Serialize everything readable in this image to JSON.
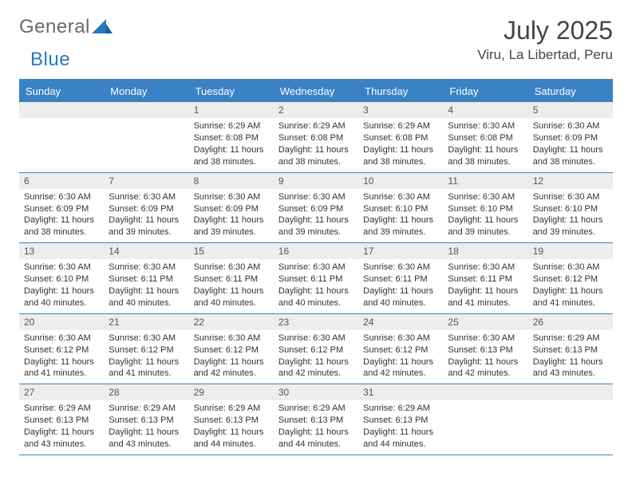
{
  "brand": {
    "part1": "General",
    "part2": "Blue"
  },
  "title": "July 2025",
  "location": "Viru, La Libertad, Peru",
  "colors": {
    "header_bg": "#3a82c4",
    "header_text": "#ffffff",
    "daynum_bg": "#ededed",
    "border": "#3a82c4",
    "text": "#333333",
    "brand_gray": "#6a6a6a",
    "brand_blue": "#2a7abf"
  },
  "weekdays": [
    "Sunday",
    "Monday",
    "Tuesday",
    "Wednesday",
    "Thursday",
    "Friday",
    "Saturday"
  ],
  "weeks": [
    [
      {
        "n": "",
        "sr": "",
        "ss": "",
        "dl": ""
      },
      {
        "n": "",
        "sr": "",
        "ss": "",
        "dl": ""
      },
      {
        "n": "1",
        "sr": "6:29 AM",
        "ss": "6:08 PM",
        "dl": "11 hours and 38 minutes."
      },
      {
        "n": "2",
        "sr": "6:29 AM",
        "ss": "6:08 PM",
        "dl": "11 hours and 38 minutes."
      },
      {
        "n": "3",
        "sr": "6:29 AM",
        "ss": "6:08 PM",
        "dl": "11 hours and 38 minutes."
      },
      {
        "n": "4",
        "sr": "6:30 AM",
        "ss": "6:08 PM",
        "dl": "11 hours and 38 minutes."
      },
      {
        "n": "5",
        "sr": "6:30 AM",
        "ss": "6:09 PM",
        "dl": "11 hours and 38 minutes."
      }
    ],
    [
      {
        "n": "6",
        "sr": "6:30 AM",
        "ss": "6:09 PM",
        "dl": "11 hours and 38 minutes."
      },
      {
        "n": "7",
        "sr": "6:30 AM",
        "ss": "6:09 PM",
        "dl": "11 hours and 39 minutes."
      },
      {
        "n": "8",
        "sr": "6:30 AM",
        "ss": "6:09 PM",
        "dl": "11 hours and 39 minutes."
      },
      {
        "n": "9",
        "sr": "6:30 AM",
        "ss": "6:09 PM",
        "dl": "11 hours and 39 minutes."
      },
      {
        "n": "10",
        "sr": "6:30 AM",
        "ss": "6:10 PM",
        "dl": "11 hours and 39 minutes."
      },
      {
        "n": "11",
        "sr": "6:30 AM",
        "ss": "6:10 PM",
        "dl": "11 hours and 39 minutes."
      },
      {
        "n": "12",
        "sr": "6:30 AM",
        "ss": "6:10 PM",
        "dl": "11 hours and 39 minutes."
      }
    ],
    [
      {
        "n": "13",
        "sr": "6:30 AM",
        "ss": "6:10 PM",
        "dl": "11 hours and 40 minutes."
      },
      {
        "n": "14",
        "sr": "6:30 AM",
        "ss": "6:11 PM",
        "dl": "11 hours and 40 minutes."
      },
      {
        "n": "15",
        "sr": "6:30 AM",
        "ss": "6:11 PM",
        "dl": "11 hours and 40 minutes."
      },
      {
        "n": "16",
        "sr": "6:30 AM",
        "ss": "6:11 PM",
        "dl": "11 hours and 40 minutes."
      },
      {
        "n": "17",
        "sr": "6:30 AM",
        "ss": "6:11 PM",
        "dl": "11 hours and 40 minutes."
      },
      {
        "n": "18",
        "sr": "6:30 AM",
        "ss": "6:11 PM",
        "dl": "11 hours and 41 minutes."
      },
      {
        "n": "19",
        "sr": "6:30 AM",
        "ss": "6:12 PM",
        "dl": "11 hours and 41 minutes."
      }
    ],
    [
      {
        "n": "20",
        "sr": "6:30 AM",
        "ss": "6:12 PM",
        "dl": "11 hours and 41 minutes."
      },
      {
        "n": "21",
        "sr": "6:30 AM",
        "ss": "6:12 PM",
        "dl": "11 hours and 41 minutes."
      },
      {
        "n": "22",
        "sr": "6:30 AM",
        "ss": "6:12 PM",
        "dl": "11 hours and 42 minutes."
      },
      {
        "n": "23",
        "sr": "6:30 AM",
        "ss": "6:12 PM",
        "dl": "11 hours and 42 minutes."
      },
      {
        "n": "24",
        "sr": "6:30 AM",
        "ss": "6:12 PM",
        "dl": "11 hours and 42 minutes."
      },
      {
        "n": "25",
        "sr": "6:30 AM",
        "ss": "6:13 PM",
        "dl": "11 hours and 42 minutes."
      },
      {
        "n": "26",
        "sr": "6:29 AM",
        "ss": "6:13 PM",
        "dl": "11 hours and 43 minutes."
      }
    ],
    [
      {
        "n": "27",
        "sr": "6:29 AM",
        "ss": "6:13 PM",
        "dl": "11 hours and 43 minutes."
      },
      {
        "n": "28",
        "sr": "6:29 AM",
        "ss": "6:13 PM",
        "dl": "11 hours and 43 minutes."
      },
      {
        "n": "29",
        "sr": "6:29 AM",
        "ss": "6:13 PM",
        "dl": "11 hours and 44 minutes."
      },
      {
        "n": "30",
        "sr": "6:29 AM",
        "ss": "6:13 PM",
        "dl": "11 hours and 44 minutes."
      },
      {
        "n": "31",
        "sr": "6:29 AM",
        "ss": "6:13 PM",
        "dl": "11 hours and 44 minutes."
      },
      {
        "n": "",
        "sr": "",
        "ss": "",
        "dl": ""
      },
      {
        "n": "",
        "sr": "",
        "ss": "",
        "dl": ""
      }
    ]
  ],
  "labels": {
    "sunrise": "Sunrise:",
    "sunset": "Sunset:",
    "daylight": "Daylight:"
  }
}
